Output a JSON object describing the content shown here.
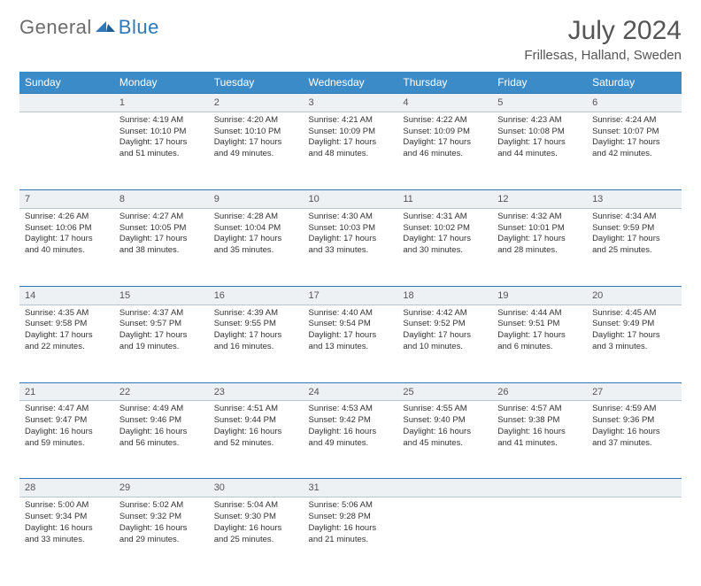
{
  "brand": {
    "part1": "General",
    "part2": "Blue"
  },
  "title": "July 2024",
  "location": "Frillesas, Halland, Sweden",
  "weekdays": [
    "Sunday",
    "Monday",
    "Tuesday",
    "Wednesday",
    "Thursday",
    "Friday",
    "Saturday"
  ],
  "header_bg": "#3b8bc9",
  "header_fg": "#ffffff",
  "daynum_bg": "#eef1f4",
  "rule_color": "#2e77b8",
  "text_color": "#333333",
  "font_size_body": 9.5,
  "weeks": [
    {
      "nums": [
        "",
        "1",
        "2",
        "3",
        "4",
        "5",
        "6"
      ],
      "cells": [
        null,
        {
          "sr": "Sunrise: 4:19 AM",
          "ss": "Sunset: 10:10 PM",
          "d1": "Daylight: 17 hours",
          "d2": "and 51 minutes."
        },
        {
          "sr": "Sunrise: 4:20 AM",
          "ss": "Sunset: 10:10 PM",
          "d1": "Daylight: 17 hours",
          "d2": "and 49 minutes."
        },
        {
          "sr": "Sunrise: 4:21 AM",
          "ss": "Sunset: 10:09 PM",
          "d1": "Daylight: 17 hours",
          "d2": "and 48 minutes."
        },
        {
          "sr": "Sunrise: 4:22 AM",
          "ss": "Sunset: 10:09 PM",
          "d1": "Daylight: 17 hours",
          "d2": "and 46 minutes."
        },
        {
          "sr": "Sunrise: 4:23 AM",
          "ss": "Sunset: 10:08 PM",
          "d1": "Daylight: 17 hours",
          "d2": "and 44 minutes."
        },
        {
          "sr": "Sunrise: 4:24 AM",
          "ss": "Sunset: 10:07 PM",
          "d1": "Daylight: 17 hours",
          "d2": "and 42 minutes."
        }
      ]
    },
    {
      "nums": [
        "7",
        "8",
        "9",
        "10",
        "11",
        "12",
        "13"
      ],
      "cells": [
        {
          "sr": "Sunrise: 4:26 AM",
          "ss": "Sunset: 10:06 PM",
          "d1": "Daylight: 17 hours",
          "d2": "and 40 minutes."
        },
        {
          "sr": "Sunrise: 4:27 AM",
          "ss": "Sunset: 10:05 PM",
          "d1": "Daylight: 17 hours",
          "d2": "and 38 minutes."
        },
        {
          "sr": "Sunrise: 4:28 AM",
          "ss": "Sunset: 10:04 PM",
          "d1": "Daylight: 17 hours",
          "d2": "and 35 minutes."
        },
        {
          "sr": "Sunrise: 4:30 AM",
          "ss": "Sunset: 10:03 PM",
          "d1": "Daylight: 17 hours",
          "d2": "and 33 minutes."
        },
        {
          "sr": "Sunrise: 4:31 AM",
          "ss": "Sunset: 10:02 PM",
          "d1": "Daylight: 17 hours",
          "d2": "and 30 minutes."
        },
        {
          "sr": "Sunrise: 4:32 AM",
          "ss": "Sunset: 10:01 PM",
          "d1": "Daylight: 17 hours",
          "d2": "and 28 minutes."
        },
        {
          "sr": "Sunrise: 4:34 AM",
          "ss": "Sunset: 9:59 PM",
          "d1": "Daylight: 17 hours",
          "d2": "and 25 minutes."
        }
      ]
    },
    {
      "nums": [
        "14",
        "15",
        "16",
        "17",
        "18",
        "19",
        "20"
      ],
      "cells": [
        {
          "sr": "Sunrise: 4:35 AM",
          "ss": "Sunset: 9:58 PM",
          "d1": "Daylight: 17 hours",
          "d2": "and 22 minutes."
        },
        {
          "sr": "Sunrise: 4:37 AM",
          "ss": "Sunset: 9:57 PM",
          "d1": "Daylight: 17 hours",
          "d2": "and 19 minutes."
        },
        {
          "sr": "Sunrise: 4:39 AM",
          "ss": "Sunset: 9:55 PM",
          "d1": "Daylight: 17 hours",
          "d2": "and 16 minutes."
        },
        {
          "sr": "Sunrise: 4:40 AM",
          "ss": "Sunset: 9:54 PM",
          "d1": "Daylight: 17 hours",
          "d2": "and 13 minutes."
        },
        {
          "sr": "Sunrise: 4:42 AM",
          "ss": "Sunset: 9:52 PM",
          "d1": "Daylight: 17 hours",
          "d2": "and 10 minutes."
        },
        {
          "sr": "Sunrise: 4:44 AM",
          "ss": "Sunset: 9:51 PM",
          "d1": "Daylight: 17 hours",
          "d2": "and 6 minutes."
        },
        {
          "sr": "Sunrise: 4:45 AM",
          "ss": "Sunset: 9:49 PM",
          "d1": "Daylight: 17 hours",
          "d2": "and 3 minutes."
        }
      ]
    },
    {
      "nums": [
        "21",
        "22",
        "23",
        "24",
        "25",
        "26",
        "27"
      ],
      "cells": [
        {
          "sr": "Sunrise: 4:47 AM",
          "ss": "Sunset: 9:47 PM",
          "d1": "Daylight: 16 hours",
          "d2": "and 59 minutes."
        },
        {
          "sr": "Sunrise: 4:49 AM",
          "ss": "Sunset: 9:46 PM",
          "d1": "Daylight: 16 hours",
          "d2": "and 56 minutes."
        },
        {
          "sr": "Sunrise: 4:51 AM",
          "ss": "Sunset: 9:44 PM",
          "d1": "Daylight: 16 hours",
          "d2": "and 52 minutes."
        },
        {
          "sr": "Sunrise: 4:53 AM",
          "ss": "Sunset: 9:42 PM",
          "d1": "Daylight: 16 hours",
          "d2": "and 49 minutes."
        },
        {
          "sr": "Sunrise: 4:55 AM",
          "ss": "Sunset: 9:40 PM",
          "d1": "Daylight: 16 hours",
          "d2": "and 45 minutes."
        },
        {
          "sr": "Sunrise: 4:57 AM",
          "ss": "Sunset: 9:38 PM",
          "d1": "Daylight: 16 hours",
          "d2": "and 41 minutes."
        },
        {
          "sr": "Sunrise: 4:59 AM",
          "ss": "Sunset: 9:36 PM",
          "d1": "Daylight: 16 hours",
          "d2": "and 37 minutes."
        }
      ]
    },
    {
      "nums": [
        "28",
        "29",
        "30",
        "31",
        "",
        "",
        ""
      ],
      "cells": [
        {
          "sr": "Sunrise: 5:00 AM",
          "ss": "Sunset: 9:34 PM",
          "d1": "Daylight: 16 hours",
          "d2": "and 33 minutes."
        },
        {
          "sr": "Sunrise: 5:02 AM",
          "ss": "Sunset: 9:32 PM",
          "d1": "Daylight: 16 hours",
          "d2": "and 29 minutes."
        },
        {
          "sr": "Sunrise: 5:04 AM",
          "ss": "Sunset: 9:30 PM",
          "d1": "Daylight: 16 hours",
          "d2": "and 25 minutes."
        },
        {
          "sr": "Sunrise: 5:06 AM",
          "ss": "Sunset: 9:28 PM",
          "d1": "Daylight: 16 hours",
          "d2": "and 21 minutes."
        },
        null,
        null,
        null
      ]
    }
  ]
}
